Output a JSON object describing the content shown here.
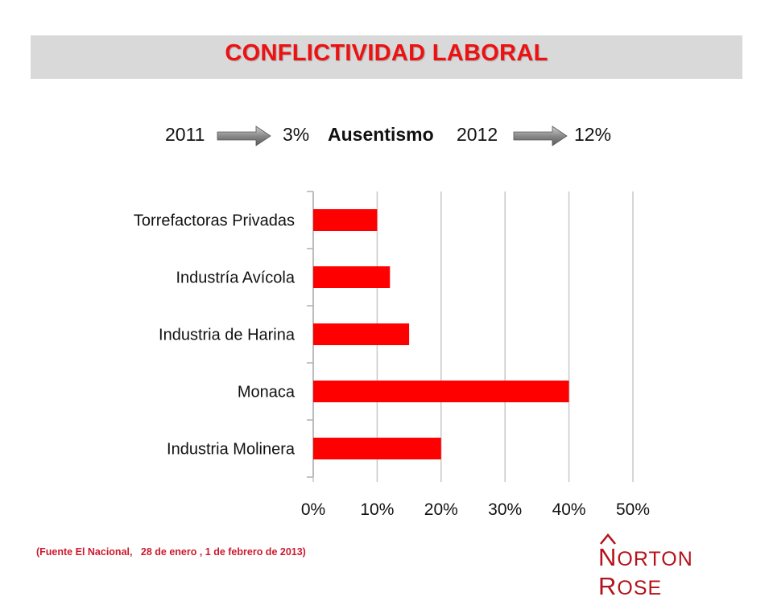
{
  "header": {
    "title": "CONFLICTIVIDAD  LABORAL"
  },
  "stats": {
    "year_2011": "2011",
    "value_2011": "3%",
    "label": "Ausentismo",
    "year_2012": "2012",
    "value_2012": "12%"
  },
  "chart_data": {
    "type": "bar",
    "orientation": "horizontal",
    "categories": [
      "Torrefactoras Privadas",
      "Industría Avícola",
      "Industria de Harina",
      "Monaca",
      "Industria Molinera"
    ],
    "values": [
      10,
      12,
      15,
      40,
      20
    ],
    "unit": "%",
    "xlim": [
      0,
      50
    ],
    "xticks": [
      "0%",
      "10%",
      "20%",
      "30%",
      "40%",
      "50%"
    ],
    "grid": true,
    "bar_color": "#ff0000"
  },
  "footer": {
    "source": "(Fuente El Nacional,   28 de enero , 1 de febrero de 2013)",
    "logo_text": "NORTON ROSE"
  },
  "colors": {
    "accent": "#ee1111",
    "title_bar": "#d9d9d9",
    "brand": "#b5121b"
  }
}
